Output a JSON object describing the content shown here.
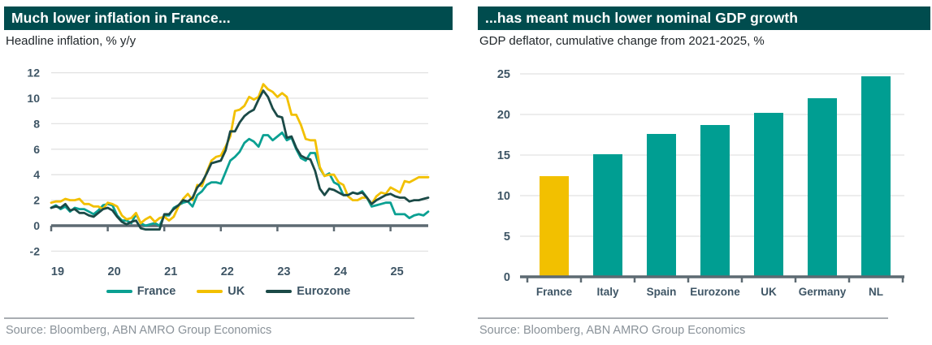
{
  "panels": {
    "left": {
      "title": "Much lower inflation in France...",
      "subtitle": "Headline inflation, % y/y",
      "source": "Source: Bloomberg, ABN AMRO Group Economics"
    },
    "right": {
      "title": "...has meant much lower nominal GDP growth",
      "subtitle": "GDP deflator, cumulative change from 2021-2025, %",
      "source": "Source: Bloomberg, ABN AMRO Group Economics"
    }
  },
  "colors": {
    "header_bg": "#004c4e",
    "header_text": "#ffffff",
    "subtitle_text": "#20262a",
    "axis_label": "#3e5565",
    "gridline": "#e2e2e2",
    "axis_line": "#5d6a72",
    "separator": "#a9adb2",
    "source_text": "#8a9299",
    "france": "#0aa092",
    "uk": "#f2c000",
    "eurozone": "#1b4a47",
    "bar_teal": "#009e92",
    "bar_gold": "#f2c000"
  },
  "chart_data": [
    {
      "type": "line",
      "title": "Much lower inflation in France...",
      "ylabel": "Headline inflation, % y/y",
      "x_start": "2019-01",
      "frequency": "monthly",
      "x_tick_labels": [
        "19",
        "20",
        "21",
        "22",
        "23",
        "24",
        "25"
      ],
      "ylim": [
        -2,
        12
      ],
      "yticks": [
        -2,
        0,
        2,
        4,
        6,
        8,
        10,
        12
      ],
      "grid": true,
      "legend_position": "bottom",
      "series": [
        {
          "name": "France",
          "color": "#0aa092",
          "values": [
            1.4,
            1.6,
            1.3,
            1.5,
            1.1,
            1.4,
            1.3,
            1.3,
            1.1,
            0.9,
            1.2,
            1.6,
            1.7,
            1.6,
            0.8,
            0.4,
            0.4,
            0.2,
            0.9,
            0.2,
            0.0,
            0.1,
            0.2,
            0.0,
            0.8,
            0.8,
            1.4,
            1.6,
            1.8,
            1.9,
            1.5,
            2.4,
            2.7,
            3.2,
            3.4,
            3.4,
            3.3,
            4.2,
            5.1,
            5.4,
            5.8,
            6.5,
            6.8,
            6.6,
            6.2,
            7.1,
            7.1,
            6.7,
            7.0,
            7.3,
            6.7,
            6.9,
            6.0,
            5.3,
            5.1,
            5.7,
            5.7,
            4.5,
            3.9,
            4.1,
            3.4,
            3.2,
            2.4,
            2.4,
            2.6,
            2.5,
            2.7,
            2.2,
            1.5,
            1.6,
            1.7,
            1.8,
            1.8,
            0.9,
            0.9,
            0.9,
            0.6,
            0.8,
            0.9,
            0.8,
            1.1
          ]
        },
        {
          "name": "UK",
          "color": "#f2c000",
          "values": [
            1.8,
            1.9,
            1.9,
            2.1,
            2.0,
            2.0,
            2.1,
            1.7,
            1.7,
            1.5,
            1.5,
            1.3,
            1.8,
            1.7,
            1.5,
            0.8,
            0.5,
            0.6,
            1.0,
            0.2,
            0.5,
            0.7,
            0.3,
            0.6,
            0.7,
            0.4,
            0.7,
            1.5,
            2.1,
            2.5,
            2.0,
            3.2,
            3.1,
            4.2,
            5.1,
            5.4,
            5.5,
            6.2,
            7.0,
            9.0,
            9.1,
            9.4,
            10.1,
            9.9,
            10.1,
            11.1,
            10.7,
            10.5,
            10.1,
            10.4,
            10.1,
            8.7,
            8.7,
            7.9,
            6.8,
            6.7,
            6.7,
            4.6,
            3.9,
            4.0,
            4.0,
            3.4,
            3.2,
            2.3,
            2.0,
            2.0,
            2.2,
            2.2,
            1.7,
            2.3,
            2.6,
            2.5,
            3.0,
            2.8,
            2.6,
            3.5,
            3.4,
            3.6,
            3.8,
            3.8,
            3.8
          ]
        },
        {
          "name": "Eurozone",
          "color": "#1b4a47",
          "values": [
            1.4,
            1.5,
            1.4,
            1.7,
            1.2,
            1.3,
            1.0,
            1.0,
            0.8,
            0.7,
            1.0,
            1.3,
            1.4,
            1.2,
            0.7,
            0.3,
            0.1,
            0.3,
            0.4,
            -0.2,
            -0.3,
            -0.3,
            -0.3,
            -0.3,
            0.9,
            0.9,
            1.3,
            1.6,
            2.0,
            1.9,
            2.2,
            3.0,
            3.4,
            4.1,
            4.9,
            5.0,
            5.1,
            5.9,
            7.4,
            7.4,
            8.1,
            8.6,
            8.9,
            9.1,
            9.9,
            10.6,
            10.1,
            9.2,
            8.6,
            8.5,
            6.9,
            7.0,
            6.1,
            5.5,
            5.3,
            5.2,
            4.3,
            2.9,
            2.4,
            2.9,
            2.8,
            2.6,
            2.4,
            2.4,
            2.6,
            2.5,
            2.6,
            2.2,
            1.7,
            2.0,
            2.2,
            2.4,
            2.5,
            2.3,
            2.2,
            2.2,
            1.9,
            2.0,
            2.0,
            2.1,
            2.2
          ]
        }
      ]
    },
    {
      "type": "bar",
      "title": "...has meant much lower nominal GDP growth",
      "ylabel": "GDP deflator, cumulative change from 2021-2025, %",
      "categories": [
        "France",
        "Italy",
        "Spain",
        "Eurozone",
        "UK",
        "Germany",
        "NL"
      ],
      "values": [
        12.4,
        15.1,
        17.6,
        18.7,
        20.2,
        22.0,
        24.7
      ],
      "bar_colors": [
        "#f2c000",
        "#009e92",
        "#009e92",
        "#009e92",
        "#009e92",
        "#009e92",
        "#009e92"
      ],
      "ylim": [
        0,
        25
      ],
      "yticks": [
        0,
        5,
        10,
        15,
        20,
        25
      ],
      "grid": true
    }
  ]
}
